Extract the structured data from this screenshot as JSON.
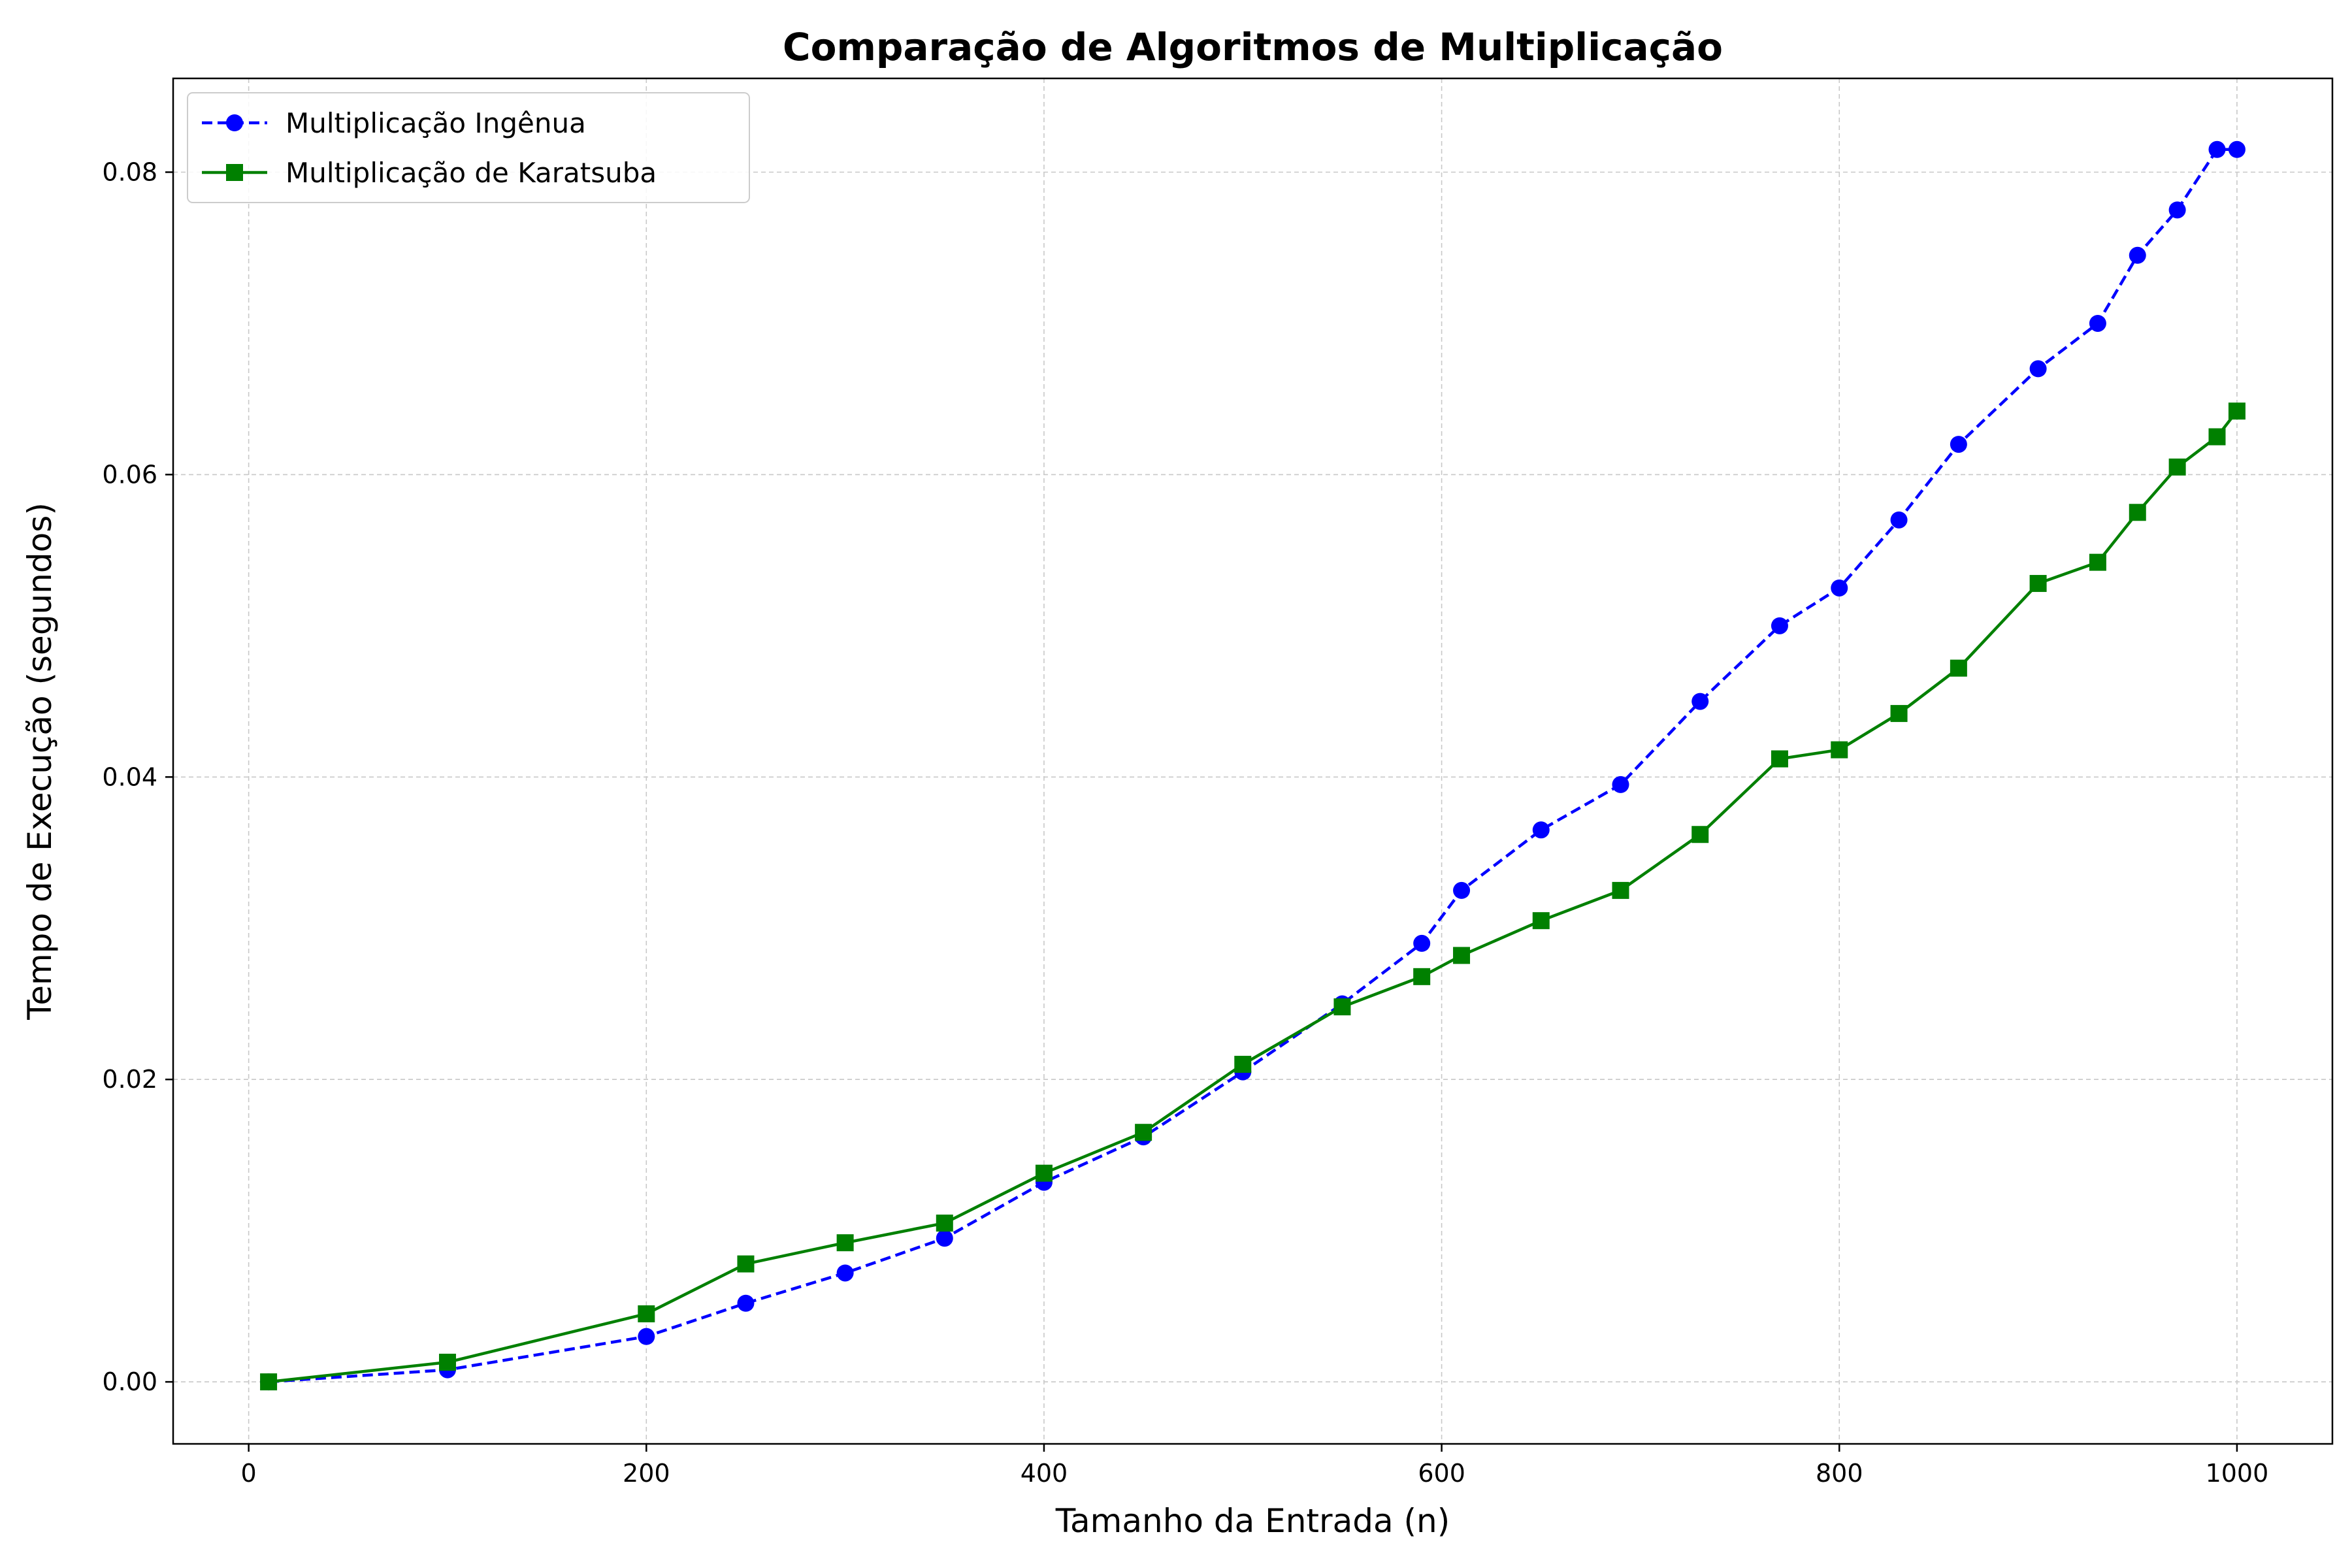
{
  "chart_data": {
    "type": "line",
    "title": "Comparação de Algoritmos de Multiplicação",
    "xlabel": "Tamanho da Entrada (n)",
    "ylabel": "Tempo de Execução (segundos)",
    "xlim": [
      -38,
      1048
    ],
    "ylim": [
      -0.0041,
      0.0862
    ],
    "xticks": [
      0,
      200,
      400,
      600,
      800,
      1000
    ],
    "xtick_labels": [
      "0",
      "200",
      "400",
      "600",
      "800",
      "1000"
    ],
    "yticks": [
      0.0,
      0.02,
      0.04,
      0.06,
      0.08
    ],
    "ytick_labels": [
      "0.00",
      "0.02",
      "0.04",
      "0.06",
      "0.08"
    ],
    "grid": true,
    "legend_position": "top-left",
    "x": [
      10,
      100,
      200,
      250,
      300,
      350,
      400,
      450,
      500,
      550,
      590,
      610,
      650,
      690,
      730,
      770,
      800,
      830,
      860,
      900,
      930,
      950,
      970,
      990,
      1000
    ],
    "series": [
      {
        "name": "Multiplicação Ingênua",
        "color": "#0000ff",
        "marker": "circle",
        "line_style": "dashed",
        "values": [
          0.0,
          0.0008,
          0.003,
          0.0052,
          0.0072,
          0.0095,
          0.0132,
          0.0162,
          0.0205,
          0.025,
          0.029,
          0.0325,
          0.0365,
          0.0395,
          0.045,
          0.05,
          0.0525,
          0.057,
          0.062,
          0.067,
          0.07,
          0.0745,
          0.0775,
          0.0815,
          0.0815
        ]
      },
      {
        "name": "Multiplicação de Karatsuba",
        "color": "#008000",
        "marker": "square",
        "line_style": "solid",
        "values": [
          0.0,
          0.0013,
          0.0045,
          0.0078,
          0.0092,
          0.0105,
          0.0138,
          0.0165,
          0.021,
          0.0248,
          0.0268,
          0.0282,
          0.0305,
          0.0325,
          0.0362,
          0.0412,
          0.0418,
          0.0442,
          0.0472,
          0.0528,
          0.0542,
          0.0575,
          0.0605,
          0.0625,
          0.0642
        ]
      }
    ]
  }
}
